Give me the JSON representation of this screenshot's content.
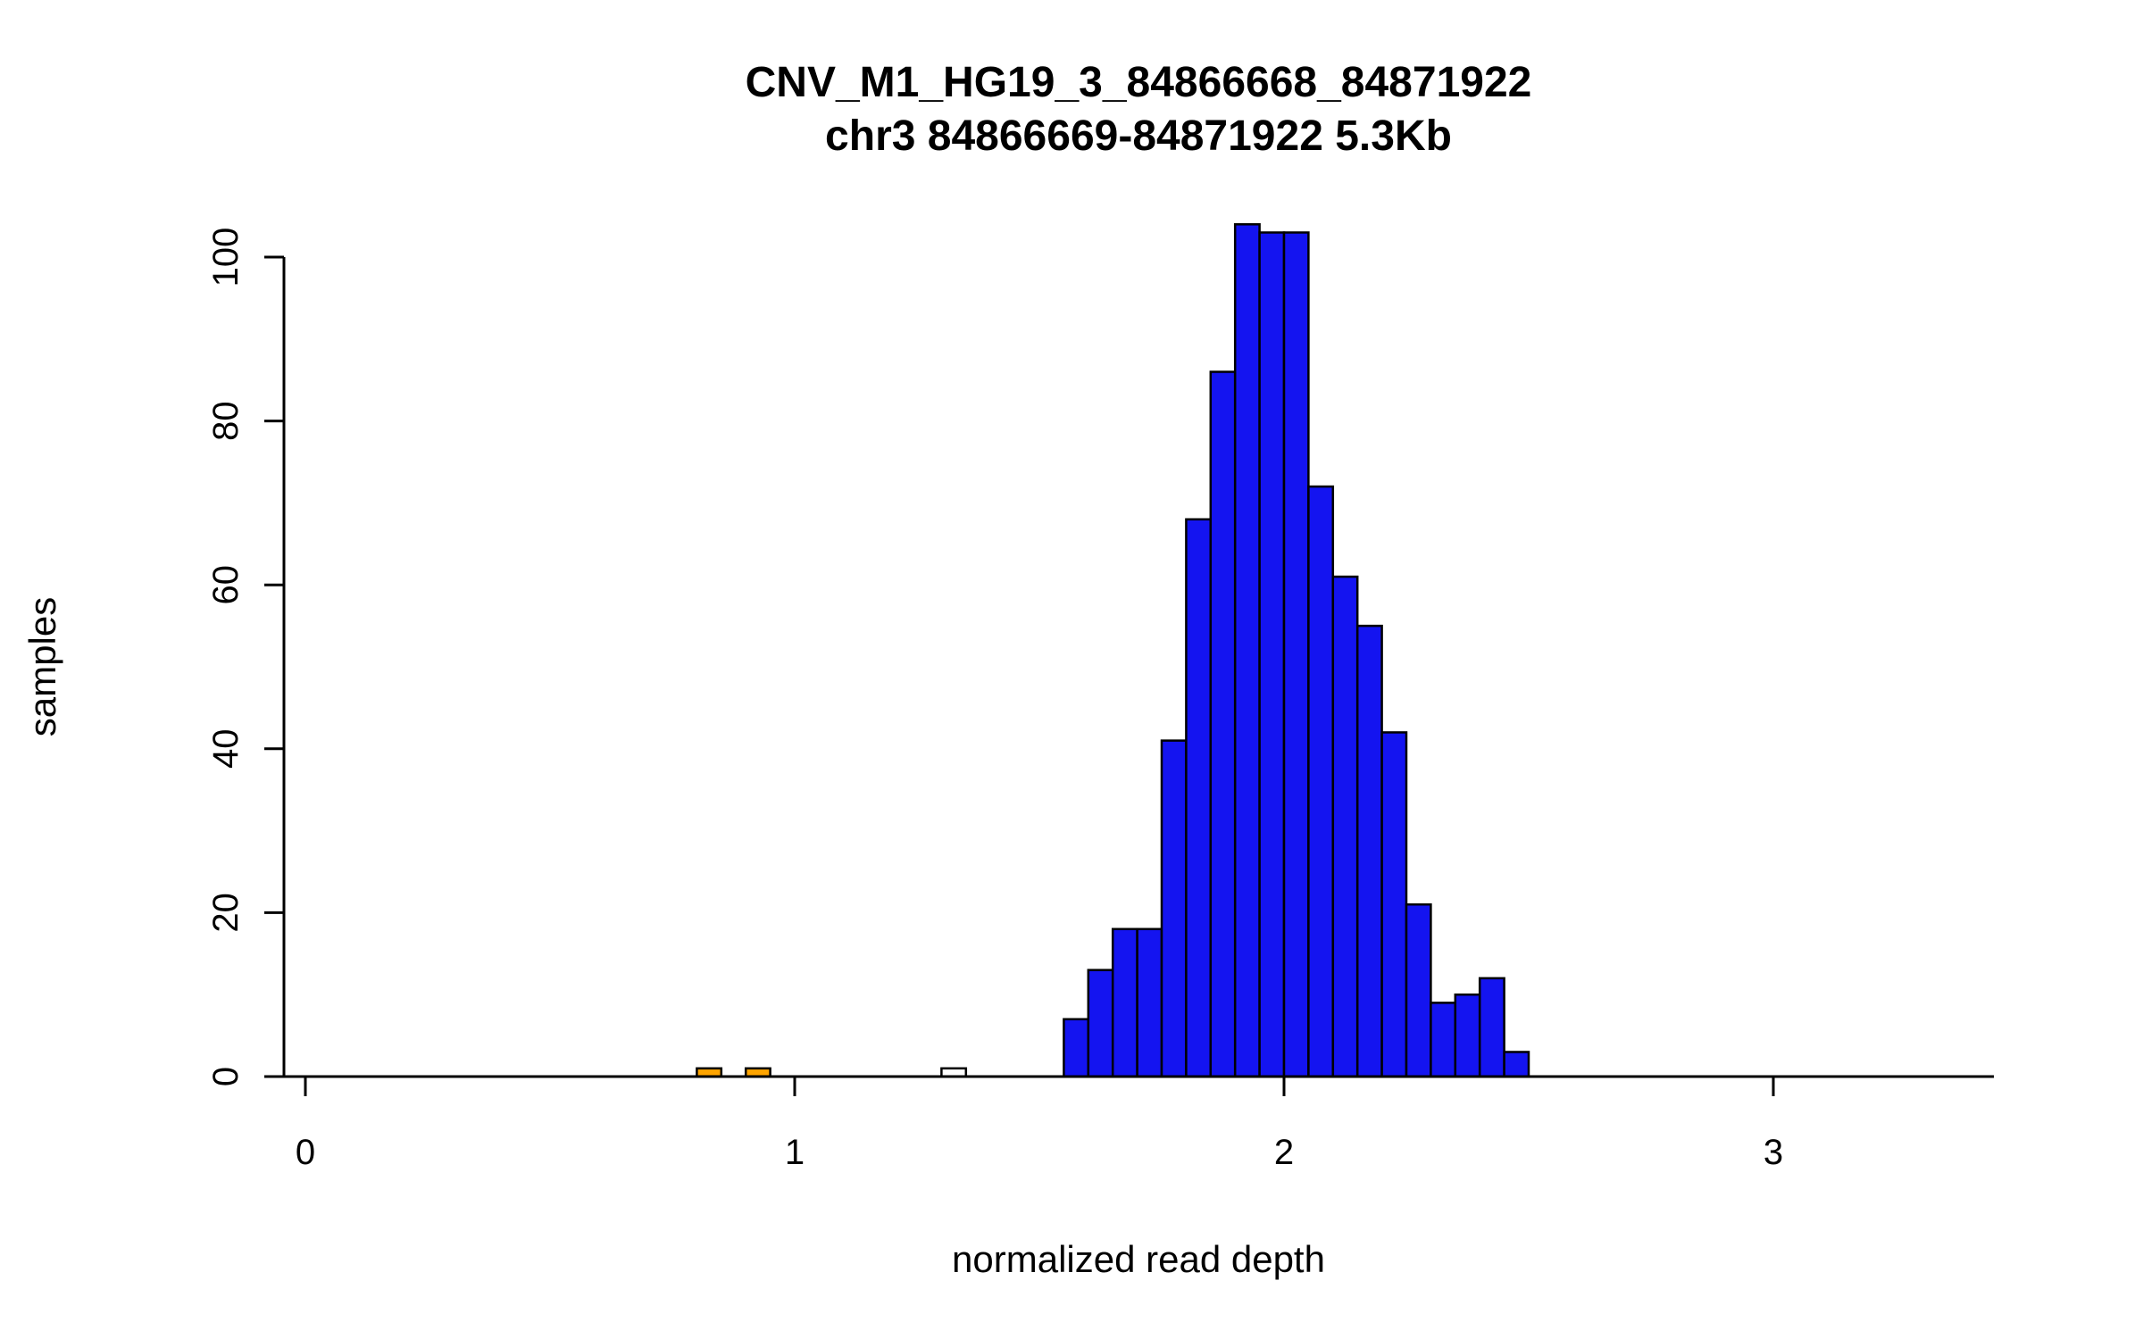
{
  "chart_data": {
    "type": "bar",
    "subtype": "histogram",
    "title": "CNV_M1_HG19_3_84866668_84871922",
    "subtitle": "chr3 84866669-84871922 5.3Kb",
    "xlabel": "normalized read depth",
    "ylabel": "samples",
    "xlim": [
      0,
      3.45
    ],
    "ylim": [
      0,
      104
    ],
    "x_ticks": [
      0,
      1,
      2,
      3
    ],
    "y_ticks": [
      0,
      20,
      40,
      60,
      80,
      100
    ],
    "grid": false,
    "legend": false,
    "bin_width": 0.05,
    "series": [
      {
        "name": "orange-bars",
        "color": "#FFA500",
        "bins": [
          {
            "start": 0.8,
            "count": 1
          },
          {
            "start": 0.9,
            "count": 1
          }
        ]
      },
      {
        "name": "white-bars",
        "color": "#FFFFFF",
        "bins": [
          {
            "start": 1.3,
            "count": 1
          }
        ]
      },
      {
        "name": "blue-bars",
        "color": "#1414F0",
        "bins": [
          {
            "start": 1.55,
            "count": 7
          },
          {
            "start": 1.6,
            "count": 13
          },
          {
            "start": 1.65,
            "count": 18
          },
          {
            "start": 1.7,
            "count": 18
          },
          {
            "start": 1.75,
            "count": 41
          },
          {
            "start": 1.8,
            "count": 68
          },
          {
            "start": 1.85,
            "count": 86
          },
          {
            "start": 1.9,
            "count": 104
          },
          {
            "start": 1.95,
            "count": 103
          },
          {
            "start": 2.0,
            "count": 103
          },
          {
            "start": 2.05,
            "count": 72
          },
          {
            "start": 2.1,
            "count": 61
          },
          {
            "start": 2.15,
            "count": 55
          },
          {
            "start": 2.2,
            "count": 42
          },
          {
            "start": 2.25,
            "count": 21
          },
          {
            "start": 2.3,
            "count": 9
          },
          {
            "start": 2.35,
            "count": 10
          },
          {
            "start": 2.4,
            "count": 12
          },
          {
            "start": 2.45,
            "count": 3
          }
        ]
      }
    ]
  }
}
